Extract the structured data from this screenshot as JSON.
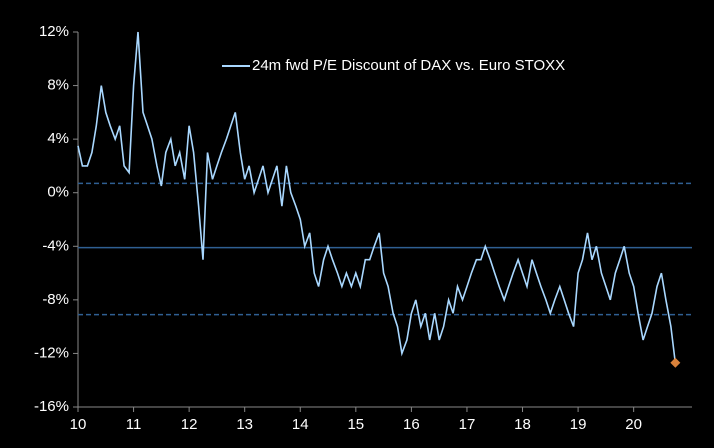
{
  "chart_data": {
    "type": "line",
    "series": [
      {
        "name": "24m fwd P/E Discount of DAX vs. Euro STOXX",
        "color": "#a9d8ff",
        "x": [
          2010,
          2010.08,
          2010.17,
          2010.25,
          2010.33,
          2010.42,
          2010.5,
          2010.58,
          2010.67,
          2010.75,
          2010.83,
          2010.92,
          2011,
          2011.08,
          2011.17,
          2011.25,
          2011.33,
          2011.42,
          2011.5,
          2011.58,
          2011.67,
          2011.75,
          2011.83,
          2011.92,
          2012,
          2012.08,
          2012.17,
          2012.25,
          2012.33,
          2012.42,
          2012.5,
          2012.58,
          2012.67,
          2012.75,
          2012.83,
          2012.92,
          2013,
          2013.08,
          2013.17,
          2013.25,
          2013.33,
          2013.42,
          2013.5,
          2013.58,
          2013.67,
          2013.75,
          2013.83,
          2013.92,
          2014,
          2014.08,
          2014.17,
          2014.25,
          2014.33,
          2014.42,
          2014.5,
          2014.58,
          2014.67,
          2014.75,
          2014.83,
          2014.92,
          2015,
          2015.08,
          2015.17,
          2015.25,
          2015.33,
          2015.42,
          2015.5,
          2015.58,
          2015.67,
          2015.75,
          2015.83,
          2015.92,
          2016,
          2016.08,
          2016.17,
          2016.25,
          2016.33,
          2016.42,
          2016.5,
          2016.58,
          2016.67,
          2016.75,
          2016.83,
          2016.92,
          2017,
          2017.08,
          2017.17,
          2017.25,
          2017.33,
          2017.42,
          2017.5,
          2017.58,
          2017.67,
          2017.75,
          2017.83,
          2017.92,
          2018,
          2018.08,
          2018.17,
          2018.25,
          2018.33,
          2018.42,
          2018.5,
          2018.58,
          2018.67,
          2018.75,
          2018.83,
          2018.92,
          2019,
          2019.08,
          2019.17,
          2019.25,
          2019.33,
          2019.42,
          2019.5,
          2019.58,
          2019.67,
          2019.75,
          2019.83,
          2019.92,
          2020,
          2020.08,
          2020.17,
          2020.25,
          2020.33,
          2020.42,
          2020.5,
          2020.58,
          2020.67,
          2020.75
        ],
        "values": [
          3.5,
          2,
          2,
          3,
          5,
          8,
          6,
          5,
          4,
          5,
          2,
          1.5,
          8,
          12,
          6,
          5,
          4,
          2,
          0.5,
          3,
          4,
          2,
          3,
          1,
          5,
          3,
          -1,
          -5,
          3,
          1,
          2,
          3,
          4,
          5,
          6,
          3,
          1,
          2,
          0,
          1,
          2,
          0,
          1,
          2,
          -1,
          2,
          0,
          -1,
          -2,
          -4,
          -3,
          -6,
          -7,
          -5,
          -4,
          -5,
          -6,
          -7,
          -6,
          -7,
          -6,
          -7,
          -5,
          -5,
          -4,
          -3,
          -6,
          -7,
          -9,
          -10,
          -12,
          -11,
          -9,
          -8,
          -10,
          -9,
          -11,
          -9,
          -11,
          -10,
          -8,
          -9,
          -7,
          -8,
          -7,
          -6,
          -5,
          -5,
          -4,
          -5,
          -6,
          -7,
          -8,
          -7,
          -6,
          -5,
          -6,
          -7,
          -5,
          -6,
          -7,
          -8,
          -9,
          -8,
          -7,
          -8,
          -9,
          -10,
          -6,
          -5,
          -3,
          -5,
          -4,
          -6,
          -7,
          -8,
          -6,
          -5,
          -4,
          -6,
          -7,
          -9,
          -11,
          -10,
          -9,
          -7,
          -6,
          -8,
          -10,
          -12.7
        ]
      }
    ],
    "end_marker_color": "#d9823b",
    "reference_lines": [
      {
        "value": 0.7,
        "style": "dashed"
      },
      {
        "value": -4.1,
        "style": "solid"
      },
      {
        "value": -9.1,
        "style": "dashed"
      }
    ],
    "reference_color": "#2f5f93",
    "xlim": [
      2010,
      2021.05
    ],
    "xticks": [
      {
        "value": 2010,
        "label": "10"
      },
      {
        "value": 2011,
        "label": "11"
      },
      {
        "value": 2012,
        "label": "12"
      },
      {
        "value": 2013,
        "label": "13"
      },
      {
        "value": 2014,
        "label": "14"
      },
      {
        "value": 2015,
        "label": "15"
      },
      {
        "value": 2016,
        "label": "16"
      },
      {
        "value": 2017,
        "label": "17"
      },
      {
        "value": 2018,
        "label": "18"
      },
      {
        "value": 2019,
        "label": "19"
      },
      {
        "value": 2020,
        "label": "20"
      }
    ],
    "ylim": [
      -16,
      12
    ],
    "yticks": [
      {
        "value": -16,
        "label": "-16%"
      },
      {
        "value": -12,
        "label": "-12%"
      },
      {
        "value": -8,
        "label": "-8%"
      },
      {
        "value": -4,
        "label": "-4%"
      },
      {
        "value": 0,
        "label": "0%"
      },
      {
        "value": 4,
        "label": "4%"
      },
      {
        "value": 8,
        "label": "8%"
      },
      {
        "value": 12,
        "label": "12%"
      }
    ]
  }
}
